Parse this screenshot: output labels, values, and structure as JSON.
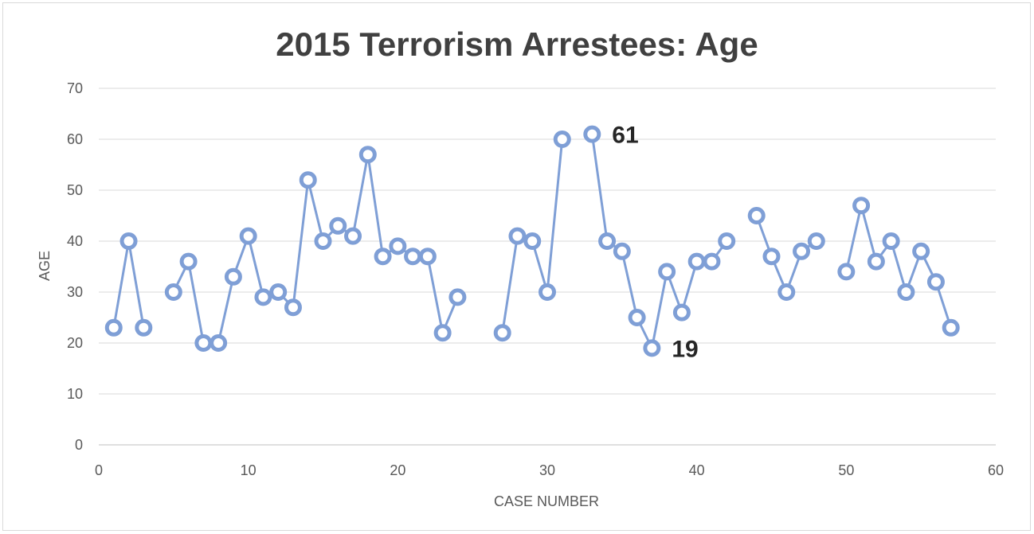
{
  "chart_data": {
    "type": "line",
    "title": "2015 Terrorism Arrestees: Age",
    "xlabel": "CASE NUMBER",
    "ylabel": "AGE",
    "xlim": [
      0,
      60
    ],
    "ylim": [
      0,
      70
    ],
    "x_ticks": [
      0,
      10,
      20,
      30,
      40,
      50,
      60
    ],
    "y_ticks": [
      0,
      10,
      20,
      30,
      40,
      50,
      60,
      70
    ],
    "grid": true,
    "series_color": "#7f9fd6",
    "series": [
      {
        "points": [
          [
            1,
            23
          ],
          [
            2,
            40
          ],
          [
            3,
            23
          ],
          [
            4,
            null
          ],
          [
            5,
            30
          ],
          [
            6,
            36
          ],
          [
            7,
            20
          ],
          [
            8,
            20
          ],
          [
            9,
            33
          ],
          [
            10,
            41
          ],
          [
            11,
            29
          ],
          [
            12,
            30
          ],
          [
            13,
            27
          ],
          [
            14,
            52
          ],
          [
            15,
            40
          ],
          [
            16,
            43
          ],
          [
            17,
            41
          ],
          [
            18,
            57
          ],
          [
            19,
            37
          ],
          [
            20,
            39
          ],
          [
            21,
            37
          ],
          [
            22,
            37
          ],
          [
            23,
            22
          ],
          [
            24,
            29
          ],
          [
            25,
            null
          ],
          [
            26,
            null
          ],
          [
            27,
            22
          ],
          [
            28,
            41
          ],
          [
            29,
            40
          ],
          [
            30,
            30
          ],
          [
            31,
            60
          ],
          [
            32,
            null
          ],
          [
            33,
            61
          ],
          [
            34,
            40
          ],
          [
            35,
            38
          ],
          [
            36,
            25
          ],
          [
            37,
            19
          ],
          [
            38,
            34
          ],
          [
            39,
            26
          ],
          [
            40,
            36
          ],
          [
            41,
            36
          ],
          [
            42,
            40
          ],
          [
            43,
            null
          ],
          [
            44,
            45
          ],
          [
            45,
            37
          ],
          [
            46,
            30
          ],
          [
            47,
            38
          ],
          [
            48,
            40
          ],
          [
            49,
            null
          ],
          [
            50,
            34
          ],
          [
            51,
            47
          ],
          [
            52,
            36
          ],
          [
            53,
            40
          ],
          [
            54,
            30
          ],
          [
            55,
            38
          ],
          [
            56,
            32
          ],
          [
            57,
            23
          ]
        ]
      }
    ],
    "annotations": [
      {
        "text": "61",
        "x": 33,
        "y": 61
      },
      {
        "text": "19",
        "x": 37,
        "y": 19
      }
    ]
  }
}
